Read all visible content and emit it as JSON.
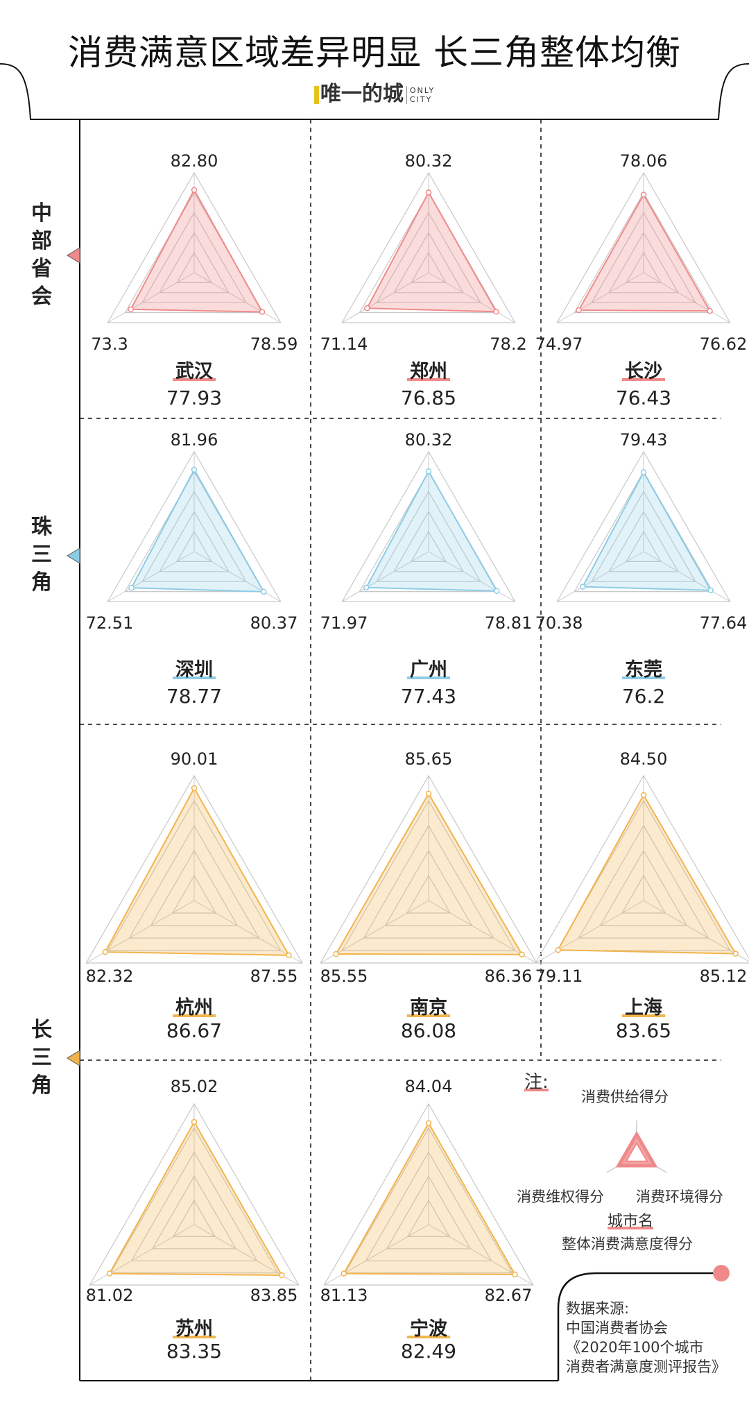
{
  "title": "消费满意区域差异明显  长三角整体均衡",
  "logo": {
    "cn": "唯一的城",
    "en1": "ONLY",
    "en2": "CITY"
  },
  "regions": [
    {
      "name": "中部省会",
      "color": "#f08a8a"
    },
    {
      "name": "珠三角",
      "color": "#8ccbe6"
    },
    {
      "name": "长三角",
      "color": "#f2b44c"
    }
  ],
  "cities": [
    {
      "name": "武汉",
      "overall": "77.93",
      "supply": "82.80",
      "rights": "73.3",
      "env": "78.59",
      "region": 0
    },
    {
      "name": "郑州",
      "overall": "76.85",
      "supply": "80.32",
      "rights": "71.14",
      "env": "78.2",
      "region": 0
    },
    {
      "name": "长沙",
      "overall": "76.43",
      "supply": "78.06",
      "rights": "74.97",
      "env": "76.62",
      "region": 0
    },
    {
      "name": "深圳",
      "overall": "78.77",
      "supply": "81.96",
      "rights": "72.51",
      "env": "80.37",
      "region": 1
    },
    {
      "name": "广州",
      "overall": "77.43",
      "supply": "80.32",
      "rights": "71.97",
      "env": "78.81",
      "region": 1
    },
    {
      "name": "东莞",
      "overall": "76.2",
      "supply": "79.43",
      "rights": "70.38",
      "env": "77.64",
      "region": 1
    },
    {
      "name": "杭州",
      "overall": "86.67",
      "supply": "90.01",
      "rights": "82.32",
      "env": "87.55",
      "region": 2
    },
    {
      "name": "南京",
      "overall": "86.08",
      "supply": "85.65",
      "rights": "85.55",
      "env": "86.36",
      "region": 2
    },
    {
      "name": "上海",
      "overall": "83.65",
      "supply": "84.50",
      "rights": "79.11",
      "env": "85.12",
      "region": 2
    },
    {
      "name": "苏州",
      "overall": "83.35",
      "supply": "85.02",
      "rights": "81.02",
      "env": "83.85",
      "region": 2
    },
    {
      "name": "宁波",
      "overall": "82.49",
      "supply": "84.04",
      "rights": "81.13",
      "env": "82.67",
      "region": 2
    }
  ],
  "legend": {
    "note": "注:",
    "top": "消费供给得分",
    "left": "消费维权得分",
    "right": "消费环境得分",
    "city": "城市名",
    "overall": "整体消费满意度得分"
  },
  "source": {
    "label": "数据来源:",
    "org": "中国消费者协会",
    "report1": "《2020年100个城市",
    "report2": "消费者满意度测评报告》"
  }
}
